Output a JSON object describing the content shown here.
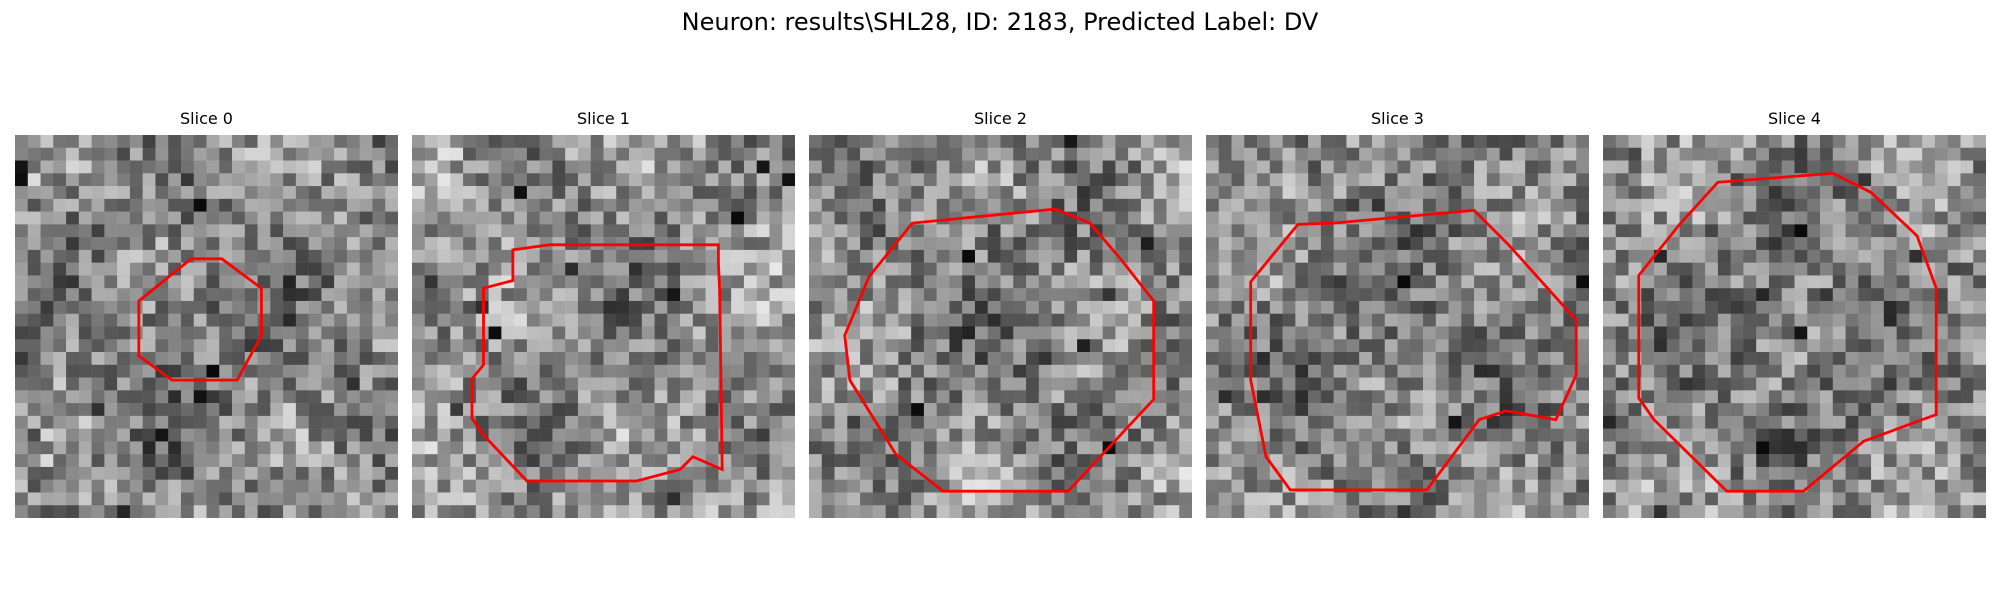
{
  "figure": {
    "title": "Neuron: results\\SHL28, ID: 2183, Predicted Label: DV"
  },
  "colors": {
    "contour": "#ff0000",
    "background": "#ffffff"
  },
  "slices": [
    {
      "title": "Slice 0"
    },
    {
      "title": "Slice 1"
    },
    {
      "title": "Slice 2"
    },
    {
      "title": "Slice 3"
    },
    {
      "title": "Slice 4"
    }
  ]
}
